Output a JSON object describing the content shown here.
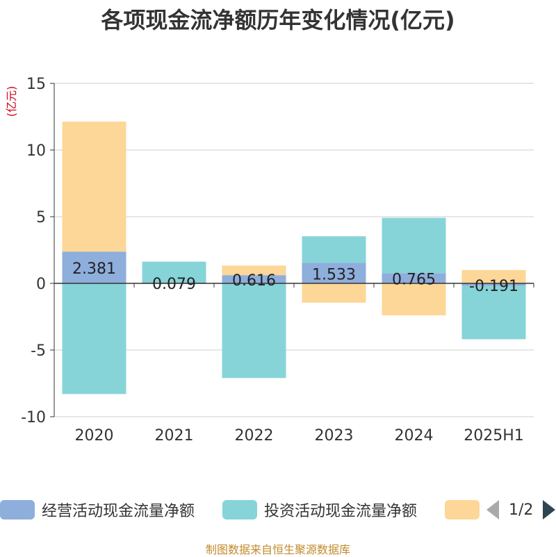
{
  "title": "各项现金流净额历年变化情况(亿元)",
  "source_text": "制图数据来自恒生聚源数据库",
  "legend": {
    "items": [
      {
        "label": "经营活动现金流量净额",
        "color": "#8eaedc"
      },
      {
        "label": "投资活动现金流量净额",
        "color": "#86d4d8"
      },
      {
        "label": "",
        "color": "#fdd797"
      }
    ],
    "page_text": "1/2"
  },
  "chart_data": {
    "type": "bar",
    "stacked": true,
    "categories": [
      "2020",
      "2021",
      "2022",
      "2023",
      "2024",
      "2025H1"
    ],
    "ylabel": "(亿元)",
    "ylim": [
      -10,
      15
    ],
    "yticks": [
      15,
      10,
      5,
      0,
      -5,
      -10
    ],
    "grid": true,
    "legend_position": "bottom",
    "series": [
      {
        "name": "经营活动现金流量净额",
        "color": "#8eaedc",
        "values": [
          2.381,
          0.079,
          0.616,
          1.533,
          0.765,
          -0.191
        ],
        "labels": [
          "2.381",
          "0.079",
          "0.616",
          "1.533",
          "0.765",
          "-0.191"
        ]
      },
      {
        "name": "投资活动现金流量净额",
        "color": "#86d4d8",
        "values": [
          -8.3,
          1.55,
          -7.1,
          2.0,
          4.15,
          -4.0
        ]
      },
      {
        "name": "",
        "color": "#fdd797",
        "values": [
          9.75,
          -0.05,
          0.72,
          -1.45,
          -2.4,
          1.0
        ]
      }
    ]
  }
}
